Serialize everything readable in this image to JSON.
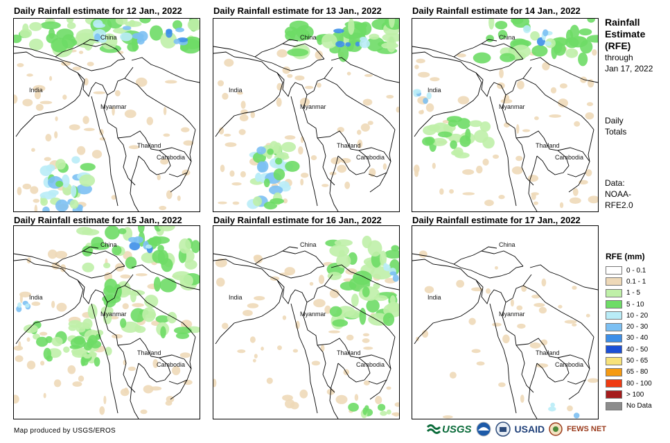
{
  "panels": [
    {
      "title": "Daily Rainfall estimate for 12 Jan., 2022",
      "intensity": "high-north"
    },
    {
      "title": "Daily Rainfall estimate for 13 Jan., 2022",
      "intensity": "high-west"
    },
    {
      "title": "Daily Rainfall estimate for 14 Jan., 2022",
      "intensity": "medium"
    },
    {
      "title": "Daily Rainfall estimate for 15 Jan., 2022",
      "intensity": "medium"
    },
    {
      "title": "Daily Rainfall estimate for 16 Jan., 2022",
      "intensity": "light-east"
    },
    {
      "title": "Daily Rainfall estimate for 17 Jan., 2022",
      "intensity": "dry"
    }
  ],
  "map_labels": {
    "china": "China",
    "india": "India",
    "myanmar": "Myanmar",
    "thailand": "Thailand",
    "cambodia": "Cambodia"
  },
  "side": {
    "title_lines": [
      "Rainfall",
      "Estimate",
      "(RFE)"
    ],
    "through": "through",
    "date": "Jan 17, 2022",
    "daily": "Daily",
    "totals": "Totals",
    "data_label": "Data:",
    "data_src1": "NOAA-",
    "data_src2": "RFE2.0"
  },
  "legend": {
    "title": "RFE (mm)",
    "items": [
      {
        "label": "0 - 0.1",
        "color": "#ffffff"
      },
      {
        "label": "0.1 - 1",
        "color": "#eed9b8"
      },
      {
        "label": "1 - 5",
        "color": "#bff0a8"
      },
      {
        "label": "5 - 10",
        "color": "#6edc66"
      },
      {
        "label": "10 - 20",
        "color": "#b9ecf7"
      },
      {
        "label": "20 - 30",
        "color": "#7cc0f3"
      },
      {
        "label": "30 - 40",
        "color": "#3d8fe8"
      },
      {
        "label": "40 - 50",
        "color": "#1b4fd6"
      },
      {
        "label": "50 - 65",
        "color": "#f7e27a"
      },
      {
        "label": "65 - 80",
        "color": "#f59a12"
      },
      {
        "label": "80 - 100",
        "color": "#ef3b12"
      },
      {
        "label": "> 100",
        "color": "#a51c1c"
      },
      {
        "label": "No Data",
        "color": "#8c8c8c"
      }
    ]
  },
  "credit": "Map produced by USGS/EROS",
  "logos": {
    "usgs": "USGS",
    "usaid": "USAID",
    "fewsnet": "FEWS NET"
  }
}
